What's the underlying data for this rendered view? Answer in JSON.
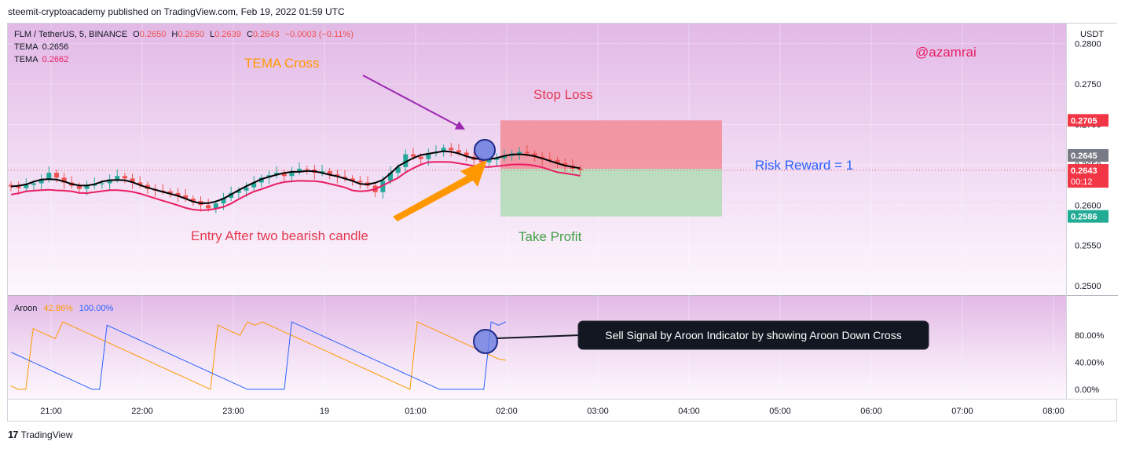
{
  "header": {
    "text": "steemit-cryptoacademy published on TradingView.com, Feb 19, 2022 01:59 UTC"
  },
  "legend": {
    "symbol": "FLM / TetherUS, 5, BINANCE",
    "o_label": "O",
    "o": "0.2650",
    "h_label": "H",
    "h": "0.2650",
    "l_label": "L",
    "l": "0.2639",
    "c_label": "C",
    "c": "0.2643",
    "change": "−0.0003 (−0.11%)",
    "tema1_label": "TEMA",
    "tema1": "0.2656",
    "tema2_label": "TEMA",
    "tema2": "0.2662"
  },
  "aroon_legend": {
    "label": "Aroon",
    "up": "42.86%",
    "down": "100.00%"
  },
  "annotations": {
    "tema_cross": "TEMA Cross",
    "stop_loss": "Stop Loss",
    "risk_reward": "Risk Reward = 1",
    "entry": "Entry After two bearish candle",
    "take_profit": "Take Profit",
    "author": "@azamrai",
    "sell_signal": "Sell Signal by Aroon Indicator by showing Aroon Down Cross"
  },
  "price_axis": {
    "currency": "USDT",
    "ticks": [
      "0.2800",
      "0.2750",
      "0.2700",
      "0.2650",
      "0.2600",
      "0.2550",
      "0.2500"
    ],
    "badges": {
      "stop": "0.2705",
      "entry": "0.2645",
      "last": "0.2643",
      "countdown": "00:12",
      "target": "0.2586"
    }
  },
  "aroon_axis": {
    "ticks": [
      "80.00%",
      "40.00%",
      "0.00%"
    ]
  },
  "time_axis": {
    "ticks": [
      "21:00",
      "22:00",
      "23:00",
      "19",
      "01:00",
      "02:00",
      "03:00",
      "04:00",
      "05:00",
      "06:00",
      "07:00",
      "08:00"
    ]
  },
  "brand": {
    "name": "TradingView"
  },
  "colors": {
    "bull": "#26a69a",
    "bear": "#ef5350",
    "tema_fast": "#000000",
    "tema_slow": "#e91e63",
    "aroon_up": "#ff9800",
    "aroon_down": "#2962ff",
    "stop_zone": "#f28b97",
    "profit_zone": "#b5dcb9",
    "tint": "#e5bde9"
  },
  "chart_data": [
    {
      "type": "candlestick",
      "symbol": "FLM / TetherUS",
      "interval_minutes": 5,
      "exchange": "BINANCE",
      "ylim": [
        0.248,
        0.281
      ],
      "x_ticks": [
        "21:00",
        "22:00",
        "23:00",
        "19",
        "01:00",
        "02:00",
        "03:00",
        "04:00",
        "05:00",
        "06:00",
        "07:00",
        "08:00"
      ],
      "closes_approx": [
        0.2623,
        0.2621,
        0.2625,
        0.2627,
        0.2632,
        0.264,
        0.2634,
        0.2628,
        0.2624,
        0.262,
        0.2624,
        0.2626,
        0.2627,
        0.2632,
        0.2636,
        0.2633,
        0.2628,
        0.2625,
        0.262,
        0.2618,
        0.2617,
        0.2615,
        0.2612,
        0.2608,
        0.2605,
        0.26,
        0.2596,
        0.2602,
        0.2609,
        0.2615,
        0.2618,
        0.2622,
        0.2628,
        0.2634,
        0.2637,
        0.264,
        0.2636,
        0.2641,
        0.2645,
        0.2644,
        0.264,
        0.2642,
        0.2638,
        0.2635,
        0.2633,
        0.263,
        0.2628,
        0.2624,
        0.2616,
        0.263,
        0.264,
        0.2647,
        0.2663,
        0.266,
        0.2657,
        0.2664,
        0.2666,
        0.2671,
        0.2668,
        0.2665,
        0.266,
        0.2656,
        0.2653,
        0.2656,
        0.2658,
        0.2661,
        0.2664,
        0.2666,
        0.2664,
        0.266,
        0.2657,
        0.2656,
        0.2652,
        0.2649,
        0.2645,
        0.2643
      ],
      "tema_values": [
        "0.2656",
        "0.2662"
      ],
      "annotations": [
        "TEMA Cross",
        "Stop Loss",
        "Risk Reward = 1",
        "Entry After two bearish candle",
        "Take Profit",
        "@azamrai"
      ],
      "position": {
        "entry": 0.2645,
        "stop_loss": 0.2705,
        "take_profit": 0.2586
      }
    },
    {
      "type": "line",
      "name": "Aroon",
      "ylim": [
        0,
        100
      ],
      "y_ticks": [
        "80.00%",
        "40.00%",
        "0.00%"
      ],
      "series": [
        {
          "name": "Aroon Up",
          "last": 42.86,
          "x": [
            0,
            2,
            4,
            6,
            8,
            10,
            12,
            14,
            16,
            18,
            20,
            22,
            24,
            26,
            28,
            30,
            32,
            34,
            36,
            38,
            40,
            42,
            44,
            46,
            48,
            50,
            52,
            54,
            56,
            58,
            60,
            62,
            64,
            66,
            68,
            70,
            72,
            74,
            76,
            78,
            80,
            82,
            84,
            86,
            88,
            90,
            92,
            94,
            96,
            98,
            100,
            102,
            104,
            106,
            108,
            110,
            112,
            114,
            116,
            118,
            120,
            122,
            124,
            126,
            128,
            130,
            132,
            134
          ],
          "values": [
            5,
            0,
            0,
            90,
            85,
            80,
            75,
            100,
            95,
            90,
            85,
            80,
            75,
            70,
            65,
            60,
            55,
            50,
            45,
            40,
            35,
            30,
            25,
            20,
            15,
            10,
            5,
            0,
            95,
            90,
            85,
            80,
            100,
            95,
            100,
            95,
            90,
            85,
            80,
            75,
            70,
            65,
            60,
            55,
            50,
            45,
            40,
            35,
            30,
            25,
            20,
            15,
            10,
            5,
            0,
            100,
            95,
            90,
            85,
            80,
            75,
            70,
            65,
            60,
            55,
            50,
            45,
            43
          ]
        },
        {
          "name": "Aroon Down",
          "last": 100.0,
          "x": [
            0,
            2,
            4,
            6,
            8,
            10,
            12,
            14,
            16,
            18,
            20,
            22,
            24,
            26,
            28,
            30,
            32,
            34,
            36,
            38,
            40,
            42,
            44,
            46,
            48,
            50,
            52,
            54,
            56,
            58,
            60,
            62,
            64,
            66,
            68,
            70,
            72,
            74,
            76,
            78,
            80,
            82,
            84,
            86,
            88,
            90,
            92,
            94,
            96,
            98,
            100,
            102,
            104,
            106,
            108,
            110,
            112,
            114,
            116,
            118,
            120,
            122,
            124,
            126,
            128,
            130,
            132,
            134
          ],
          "values": [
            55,
            50,
            45,
            40,
            35,
            30,
            25,
            20,
            15,
            10,
            5,
            0,
            0,
            95,
            90,
            85,
            80,
            75,
            70,
            65,
            60,
            55,
            50,
            45,
            40,
            35,
            30,
            25,
            20,
            15,
            10,
            5,
            0,
            0,
            0,
            0,
            0,
            0,
            100,
            95,
            90,
            85,
            80,
            75,
            70,
            65,
            60,
            55,
            50,
            45,
            40,
            35,
            30,
            25,
            20,
            15,
            10,
            5,
            0,
            0,
            0,
            0,
            0,
            0,
            0,
            100,
            95,
            100
          ]
        }
      ]
    }
  ]
}
